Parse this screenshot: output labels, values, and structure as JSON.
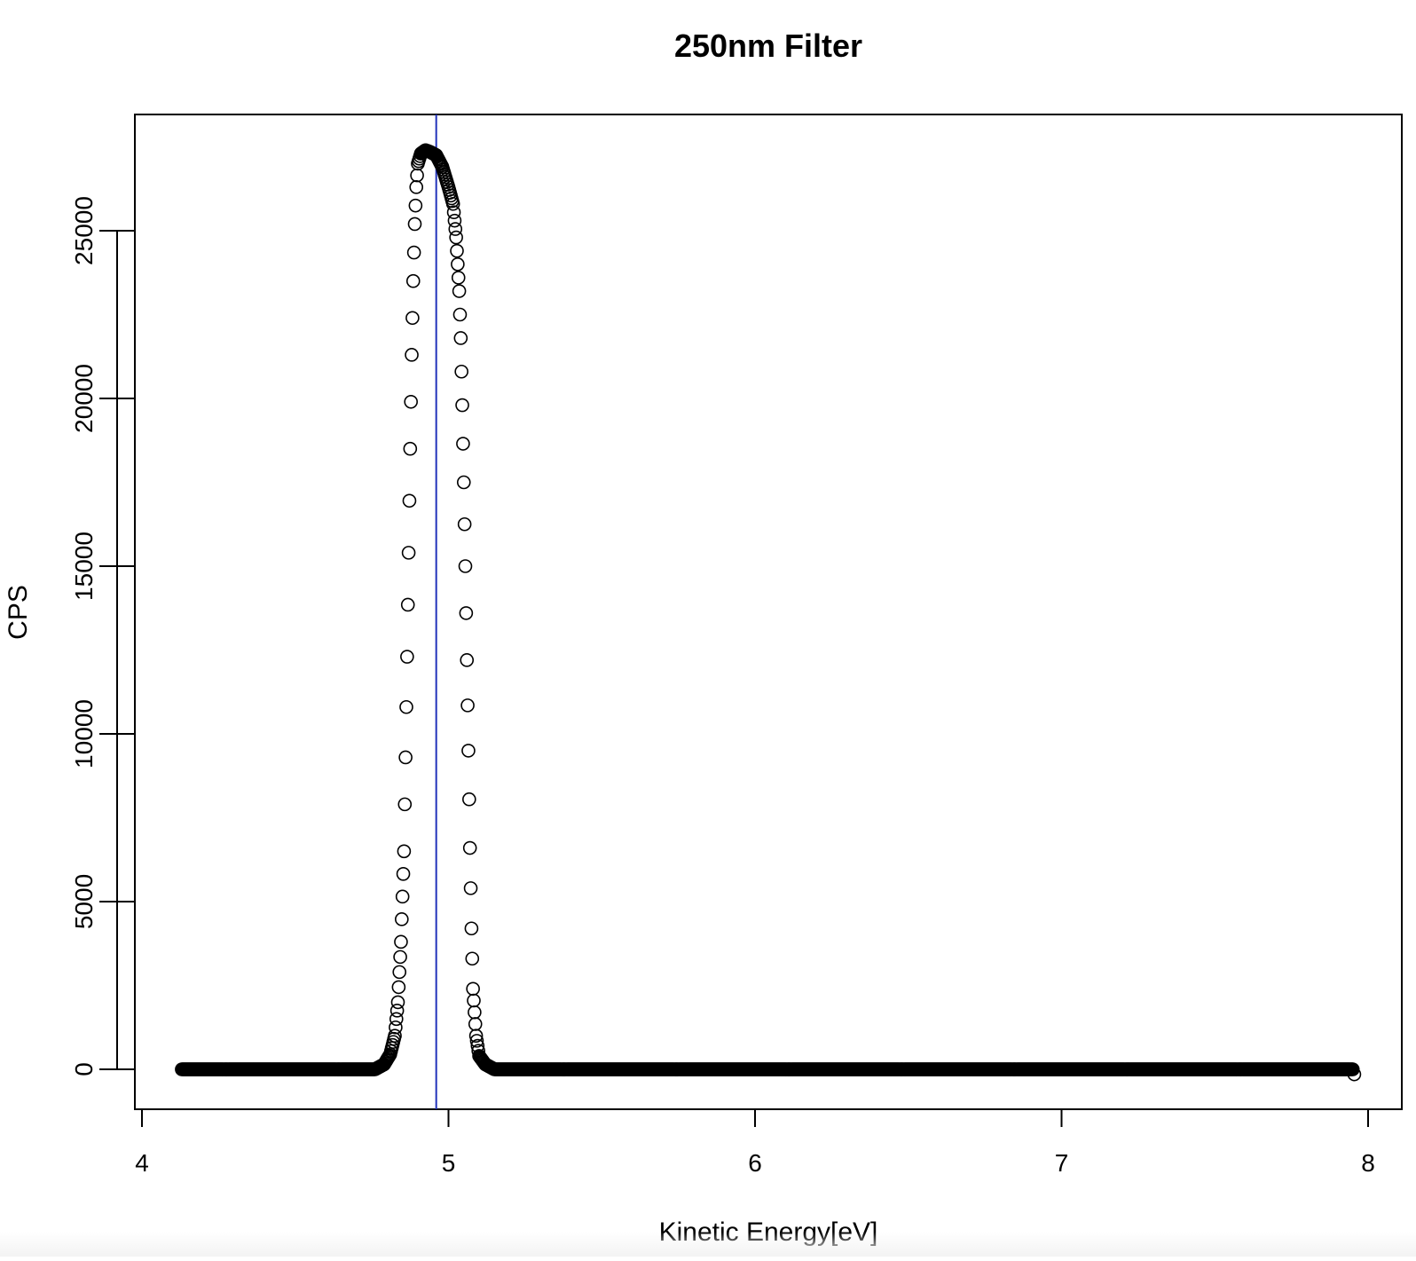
{
  "chart_data": {
    "type": "scatter",
    "title": "250nm Filter",
    "xlabel": "Kinetic Energy[eV]",
    "ylabel": "CPS",
    "xlim": [
      4,
      8
    ],
    "ylim": [
      -1500,
      28300
    ],
    "x_ticks": [
      4,
      5,
      6,
      7,
      8
    ],
    "y_ticks": [
      0,
      5000,
      10000,
      15000,
      20000,
      25000
    ],
    "x_tick_labels": [
      "4",
      "5",
      "6",
      "7",
      "8"
    ],
    "y_tick_labels": [
      "0",
      "5000",
      "10000",
      "15000",
      "20000",
      "25000"
    ],
    "grid": false,
    "legend": "none",
    "marker": "open-circle",
    "marker_color": "#000000",
    "vline": {
      "x": 4.96,
      "color": "#2233bb"
    },
    "series": [
      {
        "x_start": 4.13,
        "x_end": 7.95,
        "step": 0.0025,
        "peak": [
          [
            4.76,
            0
          ],
          [
            4.79,
            150
          ],
          [
            4.81,
            450
          ],
          [
            4.825,
            1000
          ],
          [
            4.835,
            2000
          ],
          [
            4.845,
            3800
          ],
          [
            4.855,
            6500
          ],
          [
            4.86,
            9300
          ],
          [
            4.865,
            12300
          ],
          [
            4.87,
            15400
          ],
          [
            4.875,
            18500
          ],
          [
            4.88,
            21300
          ],
          [
            4.885,
            23500
          ],
          [
            4.89,
            25200
          ],
          [
            4.895,
            26300
          ],
          [
            4.9,
            27000
          ],
          [
            4.91,
            27300
          ],
          [
            4.925,
            27400
          ],
          [
            4.94,
            27350
          ],
          [
            4.96,
            27250
          ],
          [
            4.98,
            26900
          ],
          [
            4.99,
            26600
          ],
          [
            5.0,
            26300
          ],
          [
            5.015,
            25800
          ],
          [
            5.025,
            24800
          ],
          [
            5.035,
            23200
          ],
          [
            5.04,
            21800
          ],
          [
            5.045,
            19800
          ],
          [
            5.05,
            17500
          ],
          [
            5.055,
            15000
          ],
          [
            5.06,
            12200
          ],
          [
            5.065,
            9500
          ],
          [
            5.07,
            6600
          ],
          [
            5.075,
            4200
          ],
          [
            5.08,
            2400
          ],
          [
            5.09,
            1000
          ],
          [
            5.1,
            400
          ],
          [
            5.12,
            150
          ],
          [
            5.15,
            0
          ]
        ],
        "end_points": [
          [
            7.955,
            -150
          ]
        ]
      }
    ]
  }
}
